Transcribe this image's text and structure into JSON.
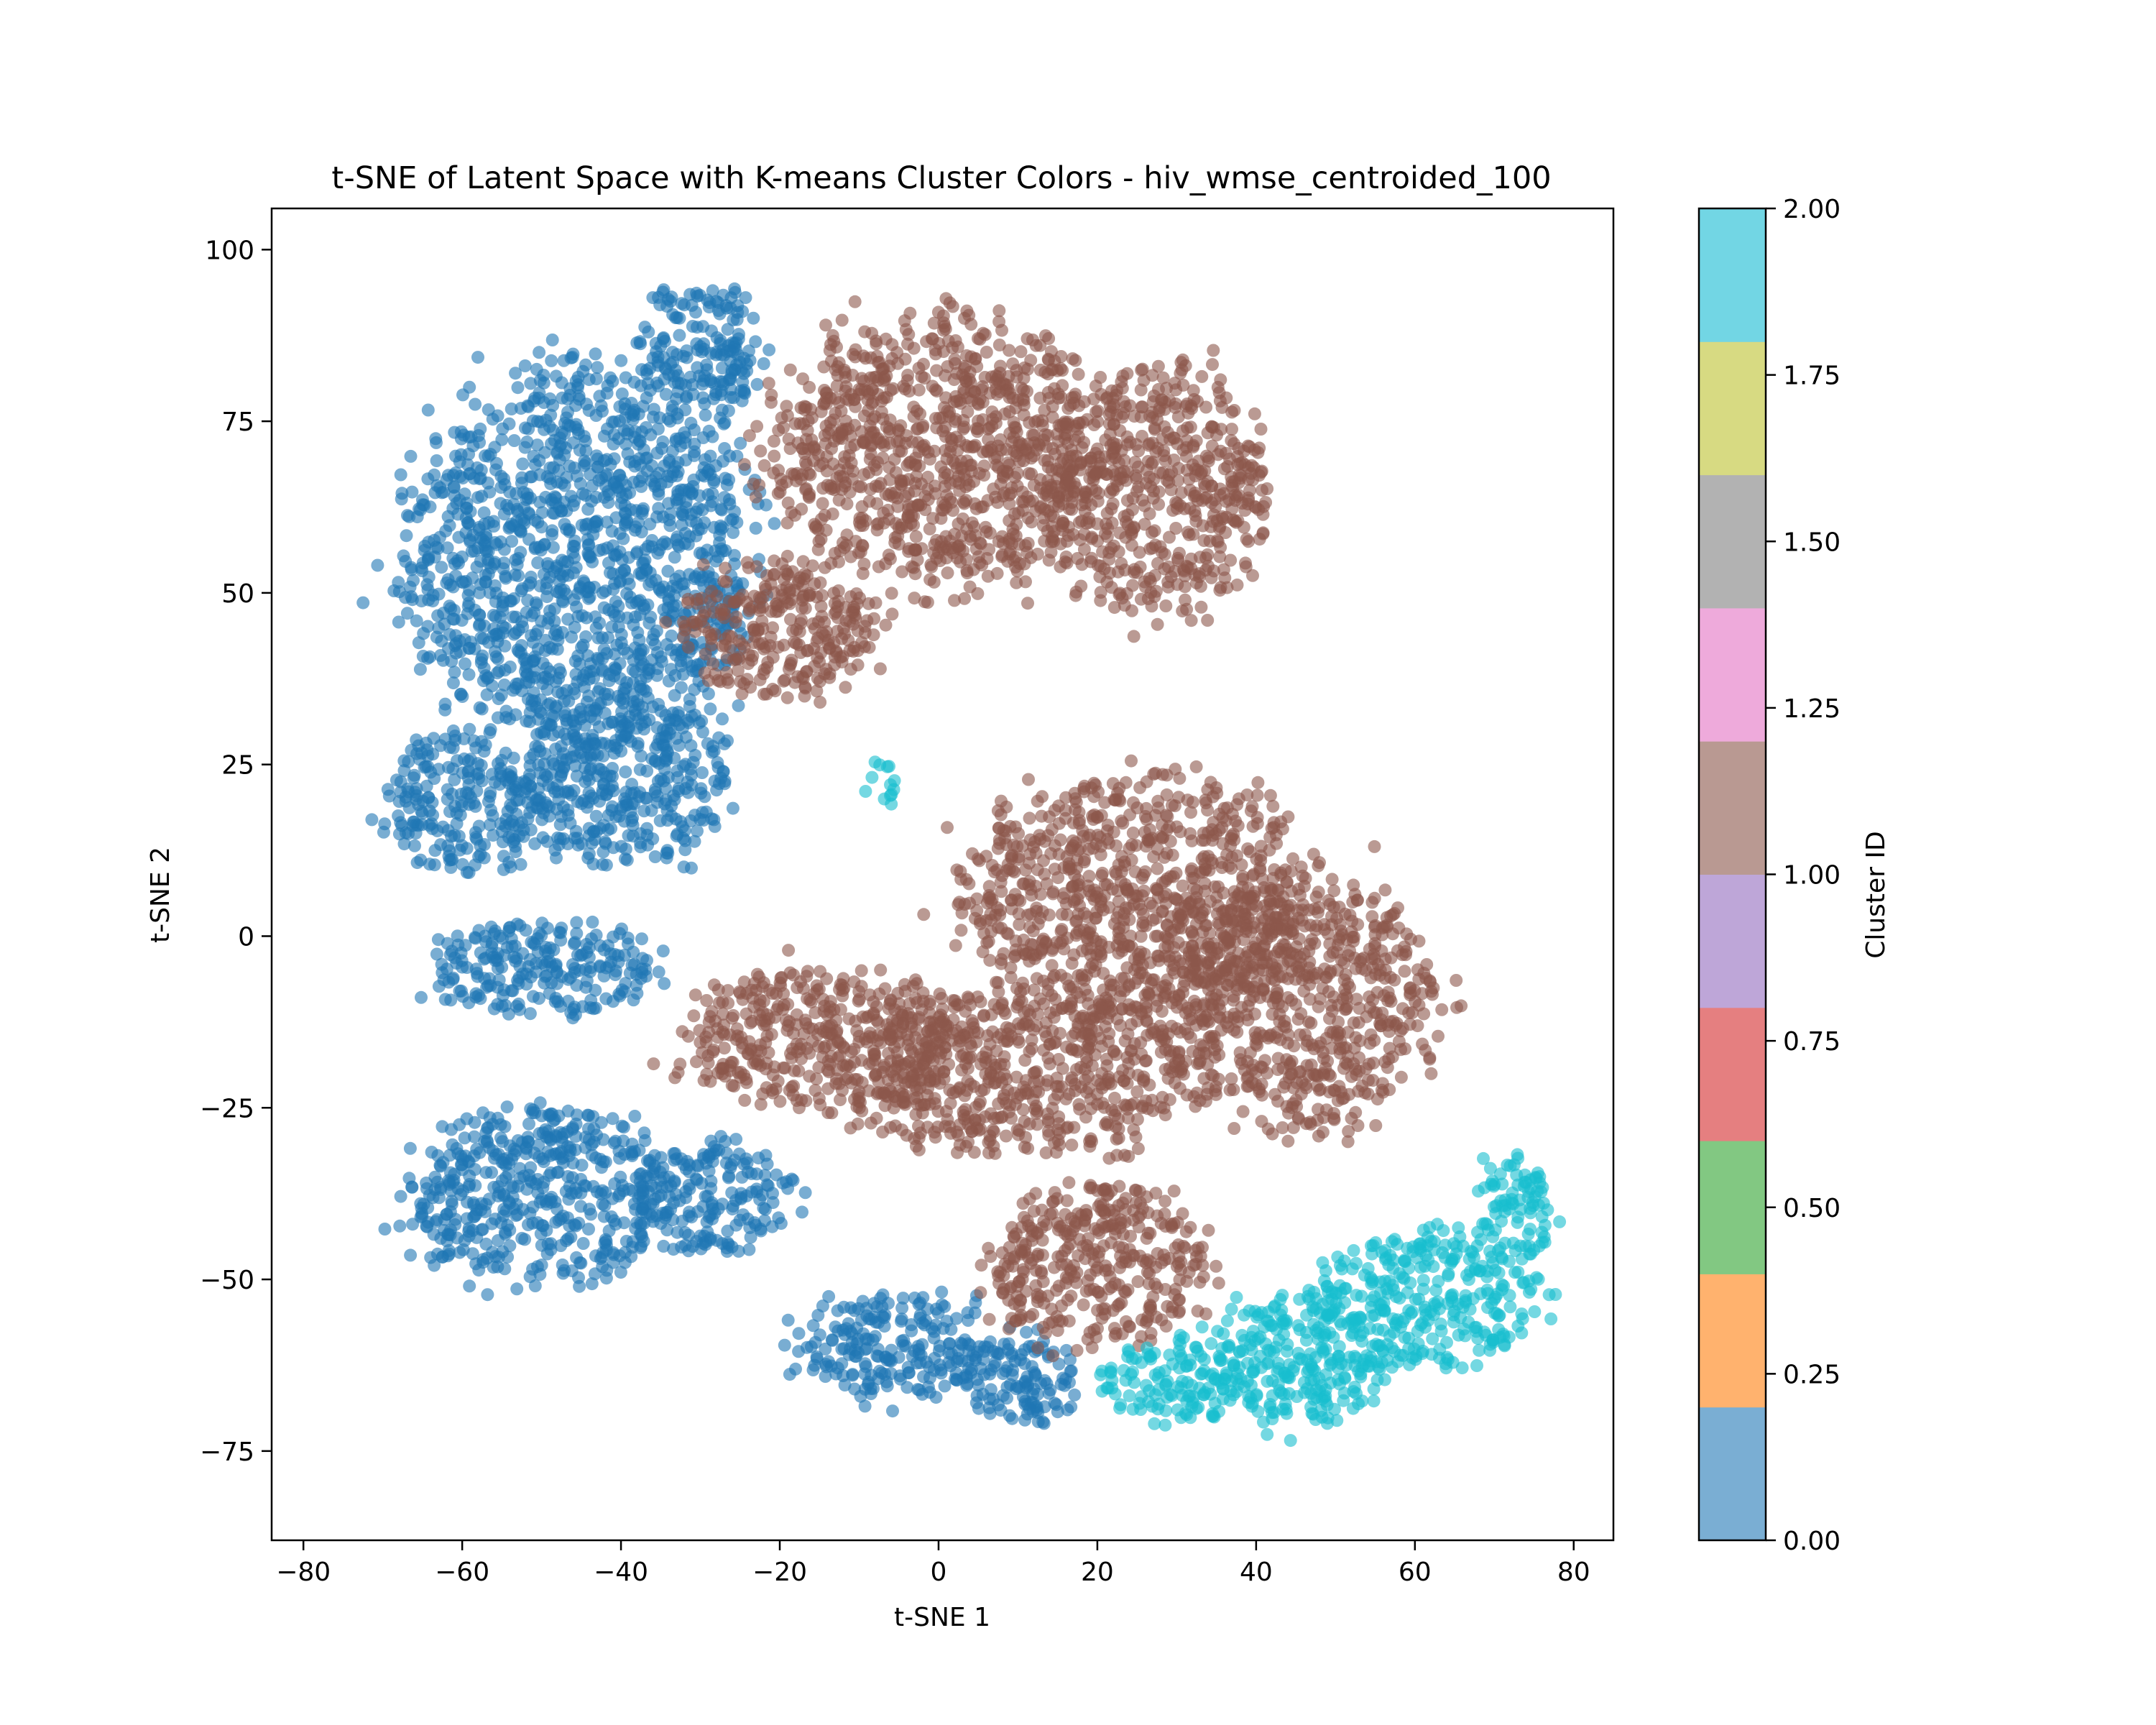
{
  "chart_data": {
    "type": "scatter",
    "title": "t-SNE of Latent Space with K-means Cluster Colors - hiv_wmse_centroided_100",
    "xlabel": "t-SNE 1",
    "ylabel": "t-SNE 2",
    "xlim": [
      -84,
      85
    ],
    "ylim": [
      -88,
      106
    ],
    "xticks": [
      -80,
      -60,
      -40,
      -20,
      0,
      20,
      40,
      60,
      80
    ],
    "xtick_labels": [
      "−80",
      "−60",
      "−40",
      "−20",
      "0",
      "20",
      "40",
      "60",
      "80"
    ],
    "yticks": [
      -75,
      -50,
      -25,
      0,
      25,
      50,
      75,
      100
    ],
    "ytick_labels": [
      "−75",
      "−50",
      "−25",
      "0",
      "25",
      "50",
      "75",
      "100"
    ],
    "series": [
      {
        "cluster": 0,
        "color": "#1f77b4",
        "regions": [
          {
            "cx": -45,
            "cy": 55,
            "rx": 22,
            "ry": 27
          },
          {
            "cx": -30,
            "cy": 85,
            "rx": 8,
            "ry": 10
          },
          {
            "cx": -40,
            "cy": 22,
            "rx": 14,
            "ry": 12
          },
          {
            "cx": -60,
            "cy": 20,
            "rx": 10,
            "ry": 10
          },
          {
            "cx": -50,
            "cy": -5,
            "rx": 15,
            "ry": 7
          },
          {
            "cx": -50,
            "cy": -38,
            "rx": 17,
            "ry": 13
          },
          {
            "cx": -28,
            "cy": -38,
            "rx": 10,
            "ry": 8
          },
          {
            "cx": -5,
            "cy": -60,
            "rx": 13,
            "ry": 8
          },
          {
            "cx": 10,
            "cy": -65,
            "rx": 7,
            "ry": 7
          }
        ]
      },
      {
        "cluster": 1,
        "color": "#8c564b",
        "regions": [
          {
            "cx": 0,
            "cy": 70,
            "rx": 21,
            "ry": 20
          },
          {
            "cx": -20,
            "cy": 45,
            "rx": 13,
            "ry": 10
          },
          {
            "cx": 27,
            "cy": 65,
            "rx": 14,
            "ry": 18
          },
          {
            "cx": 25,
            "cy": 5,
            "rx": 22,
            "ry": 18
          },
          {
            "cx": 45,
            "cy": -10,
            "rx": 17,
            "ry": 18
          },
          {
            "cx": 10,
            "cy": -20,
            "rx": 22,
            "ry": 12
          },
          {
            "cx": -15,
            "cy": -15,
            "rx": 18,
            "ry": 10
          },
          {
            "cx": 20,
            "cy": -48,
            "rx": 14,
            "ry": 12
          }
        ]
      },
      {
        "cluster": 2,
        "color": "#17becf",
        "regions": [
          {
            "cx": 62,
            "cy": -53,
            "rx": 14,
            "ry": 10
          },
          {
            "cx": 45,
            "cy": -62,
            "rx": 11,
            "ry": 10
          },
          {
            "cx": 30,
            "cy": -65,
            "rx": 10,
            "ry": 6
          },
          {
            "cx": 72,
            "cy": -40,
            "rx": 5,
            "ry": 8
          },
          {
            "cx": -7,
            "cy": 22,
            "rx": 2,
            "ry": 3
          }
        ]
      }
    ],
    "colorbar": {
      "label": "Cluster ID",
      "range": [
        0,
        2
      ],
      "ticks": [
        0.0,
        0.25,
        0.5,
        0.75,
        1.0,
        1.25,
        1.5,
        1.75,
        2.0
      ],
      "tick_labels": [
        "0.00",
        "0.25",
        "0.50",
        "0.75",
        "1.00",
        "1.25",
        "1.50",
        "1.75",
        "2.00"
      ],
      "colors": [
        "#7aaed3",
        "#ffb26e",
        "#82c882",
        "#e57f80",
        "#bea6d8",
        "#b99992",
        "#eeaadb",
        "#b2b2b2",
        "#d7da82",
        "#72d6e4"
      ]
    }
  }
}
